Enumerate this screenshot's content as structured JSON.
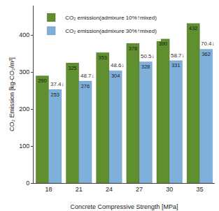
{
  "chart_data": {
    "type": "bar",
    "x_label": "Concrete Compressive Strength [MPa]",
    "y_label": "CO₂ Emission [kg-CO₂/m³]",
    "categories": [
      "18",
      "21",
      "24",
      "27",
      "30",
      "35"
    ],
    "series": [
      {
        "name": "CO₂ emission(admixure 10%↑mixed)",
        "color": "#5f8f2e",
        "values": [
          290,
          325,
          353,
          378,
          390,
          432
        ]
      },
      {
        "name": "CO₂ emission(admixure 30%↑mixed)",
        "color": "#7fb0dc",
        "values": [
          253,
          276,
          304,
          328,
          331,
          362
        ]
      }
    ],
    "annotations": [
      "37.4↓",
      "48.7↓",
      "48.6↓",
      "50.5↓",
      "58.7↓",
      "70.4↓"
    ],
    "ylim": [
      0,
      480
    ],
    "yticks": [
      0,
      100,
      200,
      300,
      400
    ],
    "grid": false,
    "legend": "upper left",
    "data_labels": true
  }
}
